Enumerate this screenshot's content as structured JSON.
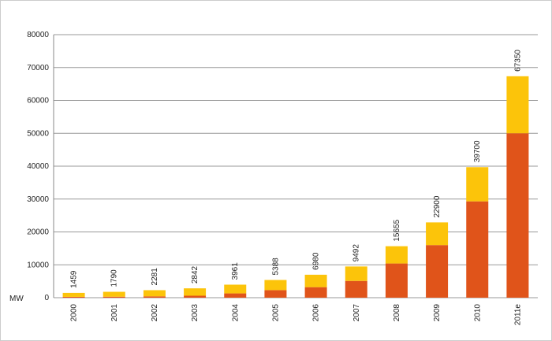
{
  "chart_data": {
    "type": "stacked_bar",
    "y_label": "MW",
    "categories": [
      "2000",
      "2001",
      "2002",
      "2003",
      "2004",
      "2005",
      "2006",
      "2007",
      "2008",
      "2009",
      "2010",
      "2011e"
    ],
    "series": [
      {
        "color": "#e0541a",
        "values": [
          250,
          300,
          400,
          600,
          1300,
          2300,
          3200,
          5100,
          10400,
          16000,
          29300,
          50000
        ]
      },
      {
        "color": "#fcc40a",
        "values": [
          1209,
          1490,
          1881,
          2242,
          2661,
          3088,
          3780,
          4392,
          5255,
          6900,
          10400,
          17350
        ]
      }
    ],
    "total_labels": [
      1459,
      1790,
      2281,
      2842,
      3961,
      5388,
      6980,
      9492,
      15655,
      22900,
      39700,
      67350
    ],
    "ylim": [
      0,
      80000
    ],
    "yticks": [
      0,
      10000,
      20000,
      30000,
      40000,
      50000,
      60000,
      70000,
      80000
    ],
    "grid": true
  }
}
